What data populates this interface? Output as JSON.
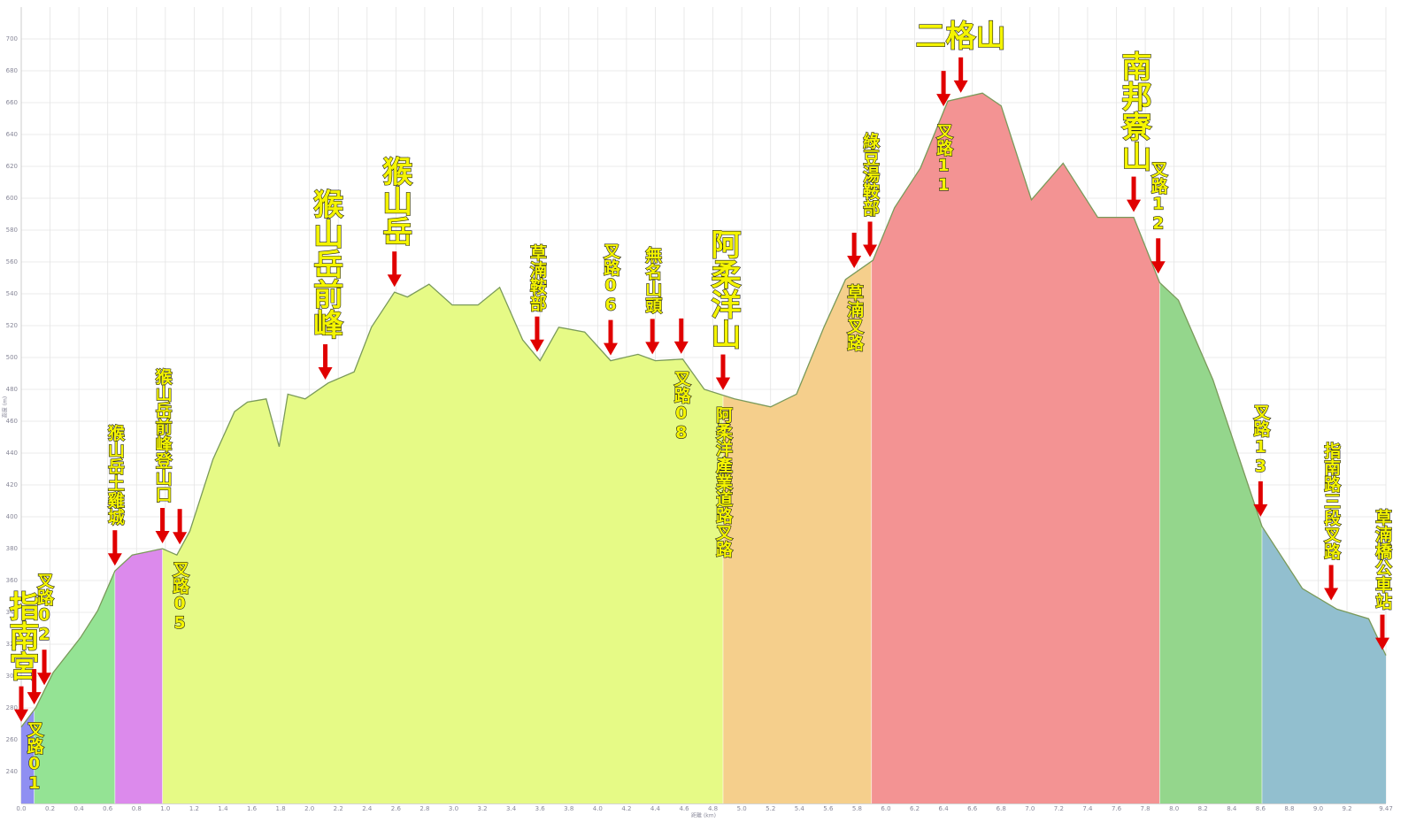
{
  "chart_data": {
    "type": "area",
    "x_label": "距離 (km)",
    "y_label": "高度 (m)",
    "x": [
      0,
      0.1,
      0.22,
      0.41,
      0.53,
      0.65,
      0.77,
      0.98,
      1.08,
      1.17,
      1.33,
      1.48,
      1.57,
      1.7,
      1.79,
      1.85,
      1.97,
      2.13,
      2.31,
      2.43,
      2.59,
      2.68,
      2.83,
      2.99,
      3.17,
      3.32,
      3.48,
      3.6,
      3.73,
      3.91,
      4.09,
      4.28,
      4.4,
      4.59,
      4.74,
      4.95,
      5.2,
      5.38,
      5.57,
      5.72,
      5.91,
      6.06,
      6.24,
      6.43,
      6.67,
      6.8,
      7.01,
      7.23,
      7.47,
      7.72,
      7.9,
      8.03,
      8.27,
      8.61,
      8.89,
      9.13,
      9.35,
      9.47
    ],
    "values": [
      268,
      280,
      302,
      324,
      341,
      366,
      376,
      380,
      376,
      391,
      436,
      466,
      472,
      474,
      444,
      477,
      474,
      484,
      491,
      519,
      541,
      538,
      546,
      533,
      533,
      544,
      511,
      498,
      519,
      516,
      498,
      502,
      498,
      499,
      480,
      474,
      469,
      477,
      519,
      549,
      561,
      594,
      619,
      661,
      666,
      658,
      599,
      622,
      588,
      588,
      547,
      536,
      486,
      394,
      355,
      342,
      336,
      313
    ],
    "line_color": "#7a9a5a",
    "segments": [
      {
        "start": 0,
        "end": 0.09,
        "color": "#8f8ff2"
      },
      {
        "start": 0.09,
        "end": 0.65,
        "color": "#94e394"
      },
      {
        "start": 0.65,
        "end": 0.98,
        "color": "#dc8aec"
      },
      {
        "start": 0.98,
        "end": 4.87,
        "color": "#e6fa86"
      },
      {
        "start": 4.87,
        "end": 5.9,
        "color": "#f5cf8c"
      },
      {
        "start": 5.9,
        "end": 7.9,
        "color": "#f39393"
      },
      {
        "start": 7.9,
        "end": 8.61,
        "color": "#94d68c"
      },
      {
        "start": 8.61,
        "end": 9.47,
        "color": "#92bfcf"
      }
    ],
    "xlim": [
      0,
      9.47
    ],
    "ylim": [
      220,
      720
    ],
    "xticks": [
      {
        "value": 0,
        "label": "0.0"
      },
      0.2,
      0.4,
      0.6,
      0.8,
      {
        "value": 1,
        "label": "1.0"
      },
      1.2,
      1.4,
      1.6,
      1.8,
      {
        "value": 2,
        "label": "2.0"
      },
      2.2,
      2.4,
      2.6,
      2.8,
      {
        "value": 3,
        "label": "3.0"
      },
      3.2,
      3.4,
      3.6,
      3.8,
      {
        "value": 4,
        "label": "4.0"
      },
      4.2,
      4.4,
      4.6,
      4.8,
      {
        "value": 5,
        "label": "5.0"
      },
      5.2,
      5.4,
      5.6,
      5.8,
      {
        "value": 6,
        "label": "6.0"
      },
      6.2,
      6.4,
      6.6,
      6.8,
      {
        "value": 7,
        "label": "7.0"
      },
      7.2,
      7.4,
      7.6,
      7.8,
      {
        "value": 8,
        "label": "8.0"
      },
      8.2,
      8.4,
      8.6,
      8.8,
      {
        "value": 9,
        "label": "9.0"
      },
      9.2,
      9.47
    ],
    "yticks": [
      240,
      260,
      280,
      300,
      320,
      340,
      360,
      380,
      400,
      420,
      440,
      460,
      480,
      500,
      520,
      540,
      560,
      580,
      600,
      620,
      640,
      660,
      680,
      700
    ],
    "grid": true,
    "annotations": [
      {
        "text": "指南宮",
        "x": 0,
        "position": "above",
        "style": "peak"
      },
      {
        "text": "叉路01",
        "x": 0.09,
        "position": "below",
        "style": "minor"
      },
      {
        "text": "叉路02",
        "x": 0.16,
        "position": "above",
        "style": "minor"
      },
      {
        "text": "猴山岳土雞城",
        "x": 0.65,
        "position": "above",
        "style": "minor"
      },
      {
        "text": "猴山岳前峰登山口",
        "x": 0.98,
        "position": "above",
        "style": "minor"
      },
      {
        "text": "叉路05",
        "x": 1.1,
        "position": "below",
        "style": "minor"
      },
      {
        "text": "猴山岳前峰",
        "x": 2.11,
        "position": "above",
        "style": "peak"
      },
      {
        "text": "猴山岳",
        "x": 2.59,
        "position": "above",
        "style": "peak"
      },
      {
        "text": "草湳鞍部",
        "x": 3.58,
        "position": "above",
        "style": "minor"
      },
      {
        "text": "叉路06",
        "x": 4.09,
        "position": "above",
        "style": "minor"
      },
      {
        "text": "無名山頭",
        "x": 4.38,
        "position": "above",
        "style": "minor"
      },
      {
        "text": "叉路08",
        "x": 4.58,
        "position": "below",
        "style": "minor"
      },
      {
        "text": "阿柔洋山",
        "x": 4.87,
        "position": "above",
        "style": "peak"
      },
      {
        "text": "阿柔洋產業道路叉路",
        "x": 4.87,
        "position": "below",
        "style": "minor"
      },
      {
        "text": "草湳叉路",
        "x": 5.78,
        "position": "below",
        "style": "minor"
      },
      {
        "text": "綠豆湯鞍部",
        "x": 5.89,
        "position": "above",
        "style": "minor"
      },
      {
        "text": "叉路11",
        "x": 6.4,
        "position": "below",
        "style": "minor"
      },
      {
        "text": "二格山",
        "x": 6.52,
        "position": "above",
        "style": "peak",
        "orientation": "horizontal"
      },
      {
        "text": "南邦寮山",
        "x": 7.72,
        "position": "above",
        "style": "peak"
      },
      {
        "text": "叉路12",
        "x": 7.89,
        "position": "above",
        "style": "minor"
      },
      {
        "text": "叉路13",
        "x": 8.6,
        "position": "above",
        "style": "minor"
      },
      {
        "text": "指南路三段叉路",
        "x": 9.09,
        "position": "above",
        "style": "minor"
      },
      {
        "text": "草湳橋公車站",
        "x": 9.47,
        "position": "above",
        "style": "minor"
      }
    ]
  }
}
